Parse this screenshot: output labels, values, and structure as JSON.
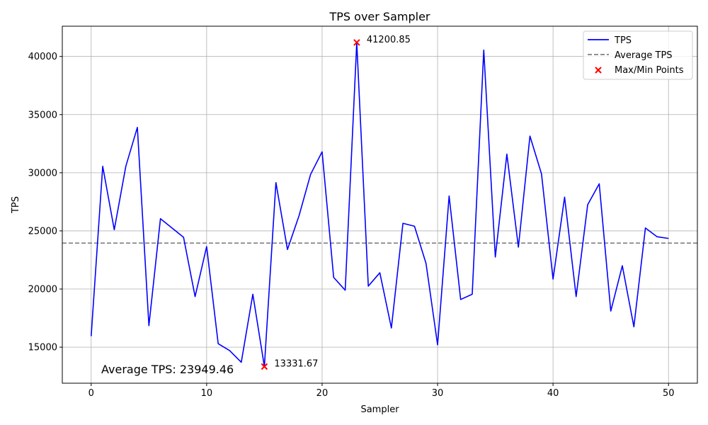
{
  "chart_data": {
    "type": "line",
    "title": "TPS over Sampler",
    "xlabel": "Sampler",
    "ylabel": "TPS",
    "xlim": [
      -2.5,
      52.5
    ],
    "ylim": [
      11900,
      42600
    ],
    "xticks": [
      0,
      10,
      20,
      30,
      40,
      50
    ],
    "yticks": [
      15000,
      20000,
      25000,
      30000,
      35000,
      40000
    ],
    "grid": true,
    "legend_position": "top-right",
    "series": [
      {
        "name": "TPS",
        "color": "#0000ff",
        "x": [
          0,
          1,
          2,
          3,
          4,
          5,
          6,
          7,
          8,
          9,
          10,
          11,
          12,
          13,
          14,
          15,
          16,
          17,
          18,
          19,
          20,
          21,
          22,
          23,
          24,
          25,
          26,
          27,
          28,
          29,
          30,
          31,
          32,
          33,
          34,
          35,
          36,
          37,
          38,
          39,
          40,
          41,
          42,
          43,
          44,
          45,
          46,
          47,
          48,
          49,
          50
        ],
        "values": [
          15950,
          30550,
          25100,
          30550,
          33900,
          16850,
          26050,
          25250,
          24450,
          19350,
          23650,
          15300,
          14700,
          13700,
          19550,
          13331.67,
          29150,
          23400,
          26300,
          29850,
          31800,
          21000,
          19900,
          41200.85,
          20250,
          21400,
          16650,
          25650,
          25400,
          22200,
          15200,
          28000,
          19100,
          19550,
          40550,
          22750,
          31600,
          23600,
          33150,
          29900,
          20850,
          27900,
          19350,
          27250,
          29050,
          18100,
          22000,
          16750,
          25250,
          24500,
          24350
        ]
      }
    ],
    "average": {
      "name": "Average TPS",
      "value": 23949.46,
      "color": "#808080"
    },
    "extremes": {
      "name": "Max/Min Points",
      "color": "#ff0000",
      "points": [
        {
          "x": 23,
          "y": 41200.85,
          "label": "41200.85"
        },
        {
          "x": 15,
          "y": 13331.67,
          "label": "13331.67"
        }
      ]
    },
    "annotation": "Average TPS: 23949.46"
  }
}
